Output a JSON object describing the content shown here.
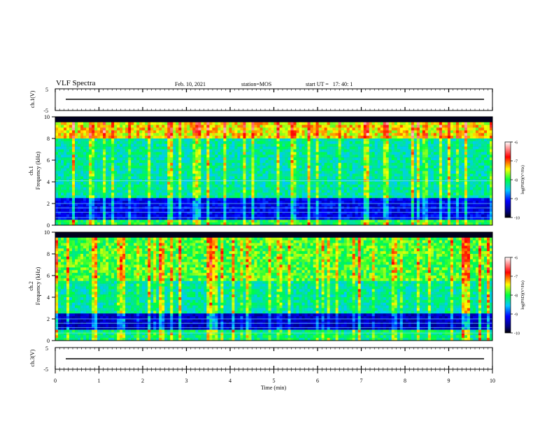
{
  "header": {
    "title": "VLF Spectra",
    "date": "Feb. 10, 2021",
    "station": "station=MOS",
    "start_ut": "start UT =   17: 40: 1"
  },
  "chart_data": [
    {
      "type": "line",
      "name_label": "ch.1(V)",
      "ylim": [
        -5,
        5
      ],
      "y_ticks": [
        "5",
        "-5"
      ],
      "trace_level": 0
    },
    {
      "type": "heatmap",
      "ylabel_line1": "ch.1",
      "ylabel_line2": "Frequency (kHz)",
      "ylim": [
        0,
        10
      ],
      "y_ticks": [
        "0",
        "2",
        "4",
        "6",
        "8",
        "10"
      ],
      "colorbar": {
        "label": "log(PSD)(V²/Hz)",
        "ticks": [
          "-6",
          "-7",
          "-8",
          "-9",
          "-10"
        ],
        "range": [
          -10,
          -6
        ]
      }
    },
    {
      "type": "heatmap",
      "ylabel_line1": "ch.2",
      "ylabel_line2": "Frequency (kHz)",
      "ylim": [
        0,
        10
      ],
      "y_ticks": [
        "0",
        "2",
        "4",
        "6",
        "8",
        "10"
      ],
      "colorbar": {
        "label": "log(PSD)(V²/Hz)",
        "ticks": [
          "-6",
          "-7",
          "-8",
          "-9",
          "-10"
        ],
        "range": [
          -10,
          -6
        ]
      }
    },
    {
      "type": "line",
      "name_label": "ch.3(V)",
      "ylim": [
        -5,
        5
      ],
      "y_ticks": [
        "5",
        "-5"
      ],
      "trace_level": 0
    }
  ],
  "x_axis": {
    "label": "Time (min)",
    "range": [
      0,
      10
    ],
    "ticks": [
      "0",
      "1",
      "2",
      "3",
      "4",
      "5",
      "6",
      "7",
      "8",
      "9",
      "10"
    ]
  }
}
